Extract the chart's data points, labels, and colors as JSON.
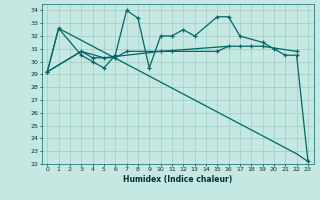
{
  "xlabel": "Humidex (Indice chaleur)",
  "xlim": [
    -0.5,
    23.5
  ],
  "ylim": [
    22,
    34.5
  ],
  "yticks": [
    22,
    23,
    24,
    25,
    26,
    27,
    28,
    29,
    30,
    31,
    32,
    33,
    34
  ],
  "xticks": [
    0,
    1,
    2,
    3,
    4,
    5,
    6,
    7,
    8,
    9,
    10,
    11,
    12,
    13,
    14,
    15,
    16,
    17,
    18,
    19,
    20,
    21,
    22,
    23
  ],
  "bg_color": "#c5e8e2",
  "grid_color": "#9ecdc6",
  "line_color": "#006868",
  "line1_x": [
    0,
    1,
    3,
    4,
    5,
    6,
    7,
    8,
    9,
    10,
    11,
    12,
    13,
    15,
    16,
    17,
    19,
    20,
    21,
    22,
    23
  ],
  "line1_y": [
    29.2,
    32.6,
    30.5,
    30.0,
    29.5,
    30.5,
    34.0,
    33.4,
    29.5,
    32.0,
    32.0,
    32.5,
    32.0,
    33.5,
    33.5,
    32.0,
    31.5,
    31.0,
    30.5,
    30.5,
    22.2
  ],
  "line2_x": [
    0,
    3,
    4,
    5,
    6,
    7,
    10,
    11,
    15,
    16,
    17,
    18,
    19,
    22
  ],
  "line2_y": [
    29.2,
    30.8,
    30.3,
    30.3,
    30.3,
    30.8,
    30.8,
    30.8,
    30.8,
    31.2,
    31.2,
    31.2,
    31.2,
    30.8
  ],
  "line3_x": [
    0,
    3,
    5,
    10,
    16
  ],
  "line3_y": [
    29.2,
    30.8,
    30.3,
    30.8,
    31.2
  ],
  "line4_x": [
    0,
    1,
    22,
    23
  ],
  "line4_y": [
    29.2,
    32.6,
    22.8,
    22.2
  ]
}
